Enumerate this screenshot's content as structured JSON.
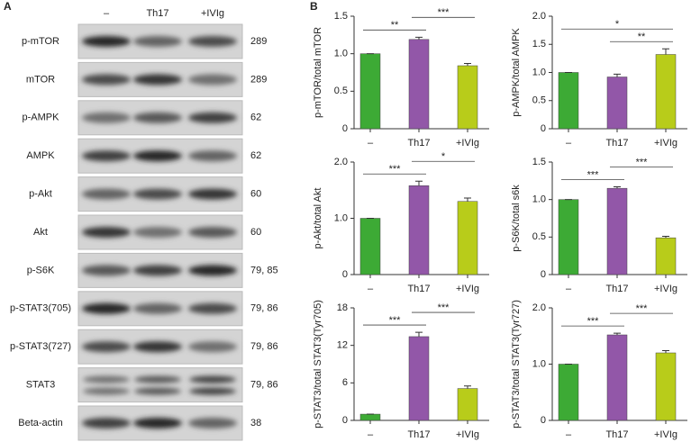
{
  "panel_a": {
    "label": "A",
    "lanes": [
      "–",
      "Th17",
      "+IVIg"
    ],
    "rows": [
      {
        "protein": "p-mTOR",
        "size": "289"
      },
      {
        "protein": "mTOR",
        "size": "289"
      },
      {
        "protein": "p-AMPK",
        "size": "62"
      },
      {
        "protein": "AMPK",
        "size": "62"
      },
      {
        "protein": "p-Akt",
        "size": "60"
      },
      {
        "protein": "Akt",
        "size": "60"
      },
      {
        "protein": "p-S6K",
        "size": "79, 85"
      },
      {
        "protein": "p-STAT3(705)",
        "size": "79, 86"
      },
      {
        "protein": "p-STAT3(727)",
        "size": "79, 86"
      },
      {
        "protein": "STAT3",
        "size": "79, 86"
      },
      {
        "protein": "Beta-actin",
        "size": "38"
      }
    ]
  },
  "panel_b_label": "B",
  "chart_data": [
    {
      "type": "bar",
      "y_label": "p-mTOR/total mTOR",
      "categories": [
        "–",
        "Th17",
        "+IVIg"
      ],
      "values": [
        1,
        1.19,
        0.84
      ],
      "errors": [
        0,
        0.03,
        0.03
      ],
      "colors": [
        "#3daa35",
        "#9257a8",
        "#b8cc1a"
      ],
      "ylim": [
        0,
        1.5
      ],
      "yticks": [
        0,
        0.5,
        {
          "value": 1,
          "label": "1.0"
        },
        1.5
      ],
      "significance": [
        {
          "text": "**",
          "from": 0,
          "to": 1
        },
        {
          "text": "***",
          "from": 1,
          "to": 2
        }
      ]
    },
    {
      "type": "bar",
      "y_label": "p-AMPK/total AMPK",
      "categories": [
        "–",
        "Th17",
        "+IVIg"
      ],
      "values": [
        1,
        0.92,
        1.32
      ],
      "errors": [
        0,
        0.05,
        0.1
      ],
      "colors": [
        "#3daa35",
        "#9257a8",
        "#b8cc1a"
      ],
      "ylim": [
        0,
        2
      ],
      "yticks": [
        0,
        0.5,
        {
          "value": 1,
          "label": "1.0"
        },
        1.5,
        {
          "value": 2,
          "label": "2.0"
        }
      ],
      "significance": [
        {
          "text": "**",
          "from": 1,
          "to": 2
        },
        {
          "text": "*",
          "from": 0,
          "to": 2
        }
      ]
    },
    {
      "type": "bar",
      "y_label": "p-Akt/total Akt",
      "categories": [
        "–",
        "Th17",
        "+IVIg"
      ],
      "values": [
        1,
        1.58,
        1.3
      ],
      "errors": [
        0,
        0.08,
        0.06
      ],
      "colors": [
        "#3daa35",
        "#9257a8",
        "#b8cc1a"
      ],
      "ylim": [
        0,
        2
      ],
      "yticks": [
        0,
        {
          "value": 1,
          "label": "1.0"
        },
        {
          "value": 2,
          "label": "2.0"
        }
      ],
      "significance": [
        {
          "text": "***",
          "from": 0,
          "to": 1
        },
        {
          "text": "*",
          "from": 1,
          "to": 2
        }
      ]
    },
    {
      "type": "bar",
      "y_label": "p-S6K/total s6k",
      "categories": [
        "–",
        "Th17",
        "+IVIg"
      ],
      "values": [
        1,
        1.15,
        0.49
      ],
      "errors": [
        0,
        0.02,
        0.02
      ],
      "colors": [
        "#3daa35",
        "#9257a8",
        "#b8cc1a"
      ],
      "ylim": [
        0,
        1.5
      ],
      "yticks": [
        0,
        0.5,
        {
          "value": 1,
          "label": "1.0"
        },
        1.5
      ],
      "significance": [
        {
          "text": "***",
          "from": 0,
          "to": 1
        },
        {
          "text": "***",
          "from": 1,
          "to": 2
        }
      ]
    },
    {
      "type": "bar",
      "y_label": "p-STAT3/total STAT3(Tyr705)",
      "categories": [
        "–",
        "Th17",
        "+IVIg"
      ],
      "values": [
        1,
        13.4,
        5.1
      ],
      "errors": [
        0,
        0.7,
        0.4
      ],
      "colors": [
        "#3daa35",
        "#9257a8",
        "#b8cc1a"
      ],
      "ylim": [
        0,
        18
      ],
      "yticks": [
        0,
        6,
        12,
        18
      ],
      "significance": [
        {
          "text": "***",
          "from": 0,
          "to": 1
        },
        {
          "text": "***",
          "from": 1,
          "to": 2
        }
      ]
    },
    {
      "type": "bar",
      "y_label": "p-STAT3/total STAT3(Tyr727)",
      "categories": [
        "–",
        "Th17",
        "+IVIg"
      ],
      "values": [
        1,
        1.52,
        1.2
      ],
      "errors": [
        0,
        0.03,
        0.04
      ],
      "colors": [
        "#3daa35",
        "#9257a8",
        "#b8cc1a"
      ],
      "ylim": [
        0,
        2
      ],
      "yticks": [
        0,
        {
          "value": 1,
          "label": "1.0"
        },
        {
          "value": 2,
          "label": "2.0"
        }
      ],
      "significance": [
        {
          "text": "***",
          "from": 0,
          "to": 1
        },
        {
          "text": "***",
          "from": 1,
          "to": 2
        }
      ]
    }
  ]
}
